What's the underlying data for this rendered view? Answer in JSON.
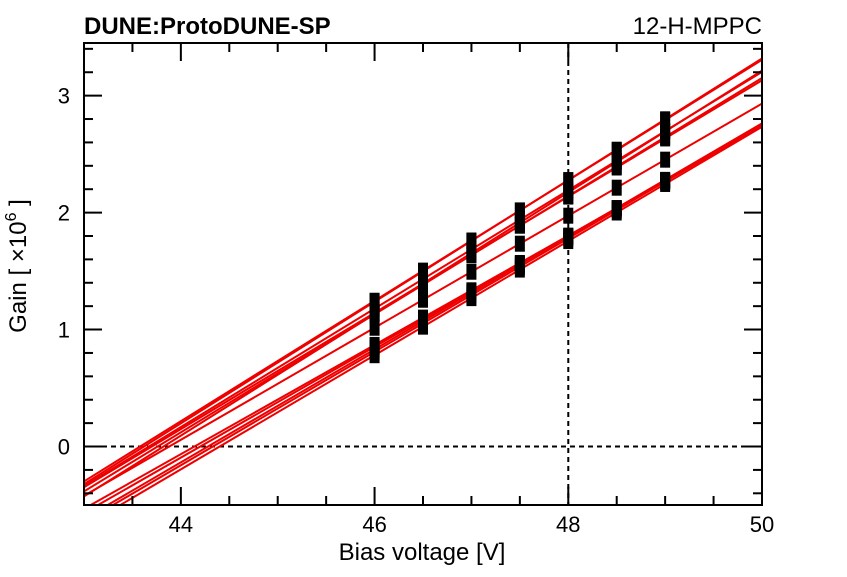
{
  "chart_data": {
    "type": "line",
    "title": "DUNE:ProtoDUNE-SP",
    "subtitle": "12-H-MPPC",
    "xlabel": "Bias voltage [V]",
    "ylabel_main": "Gain [ ",
    "ylabel_times": "×",
    "ylabel_base": "10",
    "ylabel_exp": "6",
    "ylabel_close": " ]",
    "xlim": [
      43.0,
      50.0
    ],
    "ylim": [
      -0.5,
      3.45
    ],
    "x_ticks": [
      44,
      46,
      48,
      50
    ],
    "y_ticks": [
      0,
      1,
      2,
      3
    ],
    "x_tick_labels": [
      "44",
      "46",
      "48",
      "50"
    ],
    "y_tick_labels": [
      "0",
      "1",
      "2",
      "3"
    ],
    "reference_lines": {
      "y": 0,
      "x": 48
    },
    "grid": false,
    "legend": "none",
    "x": [
      46.0,
      46.5,
      47.0,
      47.5,
      48.0,
      48.5,
      49.0
    ],
    "fit_lines": [
      {
        "x0": 43.62,
        "slope": 0.52
      },
      {
        "x0": 43.58,
        "slope": 0.515
      },
      {
        "x0": 43.67,
        "slope": 0.506
      },
      {
        "x0": 43.82,
        "slope": 0.52
      },
      {
        "x0": 43.76,
        "slope": 0.505
      },
      {
        "x0": 43.7,
        "slope": 0.497
      },
      {
        "x0": 43.88,
        "slope": 0.479
      },
      {
        "x0": 44.14,
        "slope": 0.467
      },
      {
        "x0": 44.2,
        "slope": 0.474
      },
      {
        "x0": 44.28,
        "slope": 0.483
      },
      {
        "x0": 44.33,
        "slope": 0.485
      },
      {
        "x0": 44.4,
        "slope": 0.488
      }
    ],
    "colors": {
      "fit": "#ee0000",
      "points": "#000000",
      "axes": "#000000"
    }
  }
}
